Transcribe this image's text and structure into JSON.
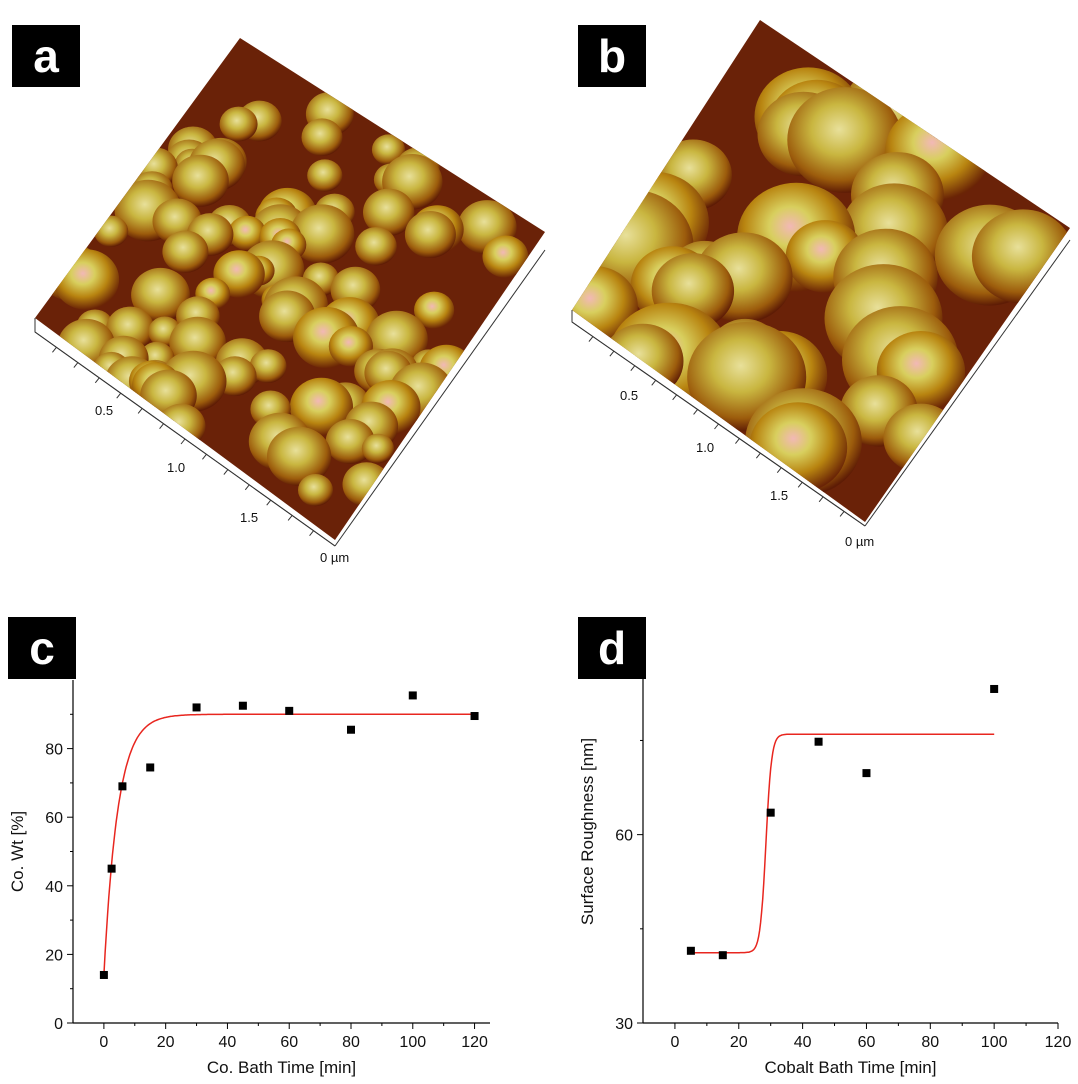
{
  "panels": {
    "a": {
      "label": "a",
      "ticks": [
        "0.5",
        "1.0",
        "1.5",
        "0 µm"
      ]
    },
    "b": {
      "label": "b",
      "ticks": [
        "0.5",
        "1.0",
        "1.5",
        "0 µm"
      ]
    },
    "c": {
      "label": "c"
    },
    "d": {
      "label": "d"
    }
  },
  "colors": {
    "fit": "#e8261f",
    "marker": "#000000",
    "afm_dark": "#5a1a06",
    "afm_mid": "#b06a10",
    "afm_light": "#d8d060",
    "afm_peak": "#f0b8b8"
  },
  "chart_data": [
    {
      "type": "scatter",
      "panel": "c",
      "xlabel": "Co. Bath Time [min]",
      "ylabel": "Co. Wt [%]",
      "xlim": [
        -10,
        125
      ],
      "ylim": [
        0,
        100
      ],
      "xticks": [
        0,
        20,
        40,
        60,
        80,
        100,
        120
      ],
      "yticks": [
        0,
        20,
        40,
        60,
        80
      ],
      "points": [
        {
          "x": 0,
          "y": 14
        },
        {
          "x": 2.5,
          "y": 45
        },
        {
          "x": 6,
          "y": 69
        },
        {
          "x": 15,
          "y": 74.5
        },
        {
          "x": 30,
          "y": 92
        },
        {
          "x": 45,
          "y": 92.5
        },
        {
          "x": 60,
          "y": 91
        },
        {
          "x": 80,
          "y": 85.5
        },
        {
          "x": 100,
          "y": 95.5
        },
        {
          "x": 120,
          "y": 89.5
        }
      ],
      "fit": {
        "type": "exponential",
        "y0": 14,
        "ymax": 90,
        "tau": 4.5,
        "x_start": 0,
        "x_end": 120
      }
    },
    {
      "type": "scatter",
      "panel": "d",
      "xlabel": "Cobalt Bath Time [min]",
      "ylabel": "Surface Roughness [nm]",
      "xlim": [
        -10,
        120
      ],
      "ylim": [
        30,
        91
      ],
      "xticks": [
        0,
        20,
        40,
        60,
        80,
        100,
        120
      ],
      "yticks": [
        30,
        60
      ],
      "points": [
        {
          "x": 5,
          "y": 41.5
        },
        {
          "x": 15,
          "y": 40.8
        },
        {
          "x": 30,
          "y": 63.5
        },
        {
          "x": 45,
          "y": 74.8
        },
        {
          "x": 60,
          "y": 69.8
        },
        {
          "x": 100,
          "y": 83.2
        }
      ],
      "fit": {
        "type": "sigmoid",
        "low": 41.2,
        "high": 76,
        "x0": 28.5,
        "width": 0.9,
        "x_start": 5,
        "x_end": 100
      }
    }
  ]
}
